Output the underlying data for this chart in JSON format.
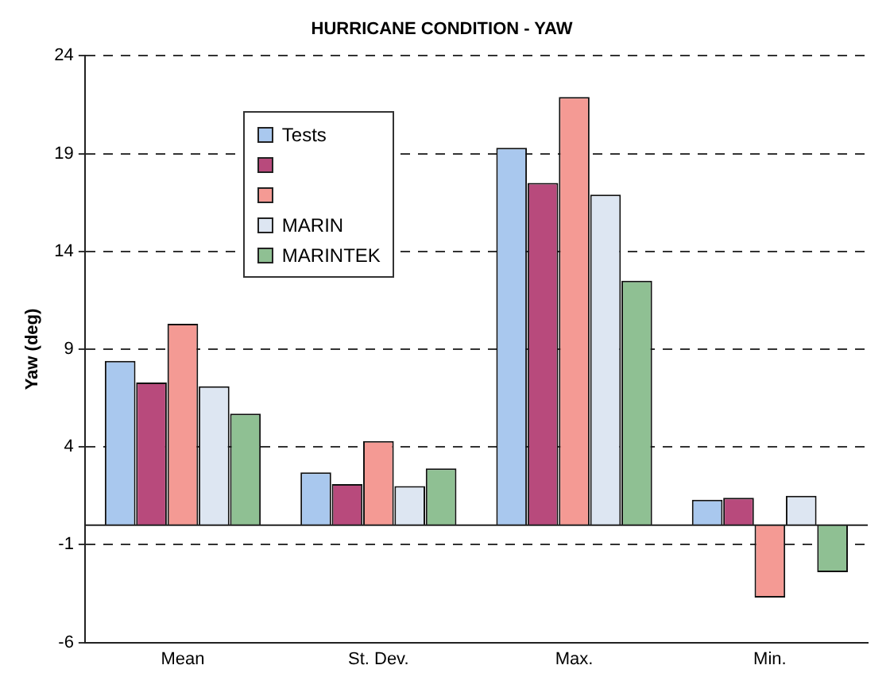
{
  "chart_data": {
    "type": "bar",
    "title": "HURRICANE CONDITION - YAW",
    "ylabel": "Yaw (deg)",
    "categories": [
      "Mean",
      "St. Dev.",
      "Max.",
      "Min."
    ],
    "series": [
      {
        "name": "Tests",
        "color": "#a9c8ee",
        "values": [
          8.4,
          2.7,
          19.3,
          1.3
        ]
      },
      {
        "color": "#b84a7c",
        "values": [
          7.3,
          2.1,
          17.5,
          1.4
        ]
      },
      {
        "color": "#f49a94",
        "values": [
          10.3,
          4.3,
          21.9,
          -3.7
        ]
      },
      {
        "name": "MARIN",
        "color": "#dde6f2",
        "values": [
          7.1,
          2.0,
          16.9,
          1.5
        ]
      },
      {
        "name": "MARINTEK",
        "color": "#8fc093",
        "values": [
          5.7,
          2.9,
          12.5,
          -2.4
        ]
      }
    ],
    "ylim": [
      -6,
      24
    ],
    "yticks": [
      -6,
      -1,
      4,
      9,
      14,
      19,
      24
    ],
    "grid": "y",
    "legend": "top left"
  }
}
